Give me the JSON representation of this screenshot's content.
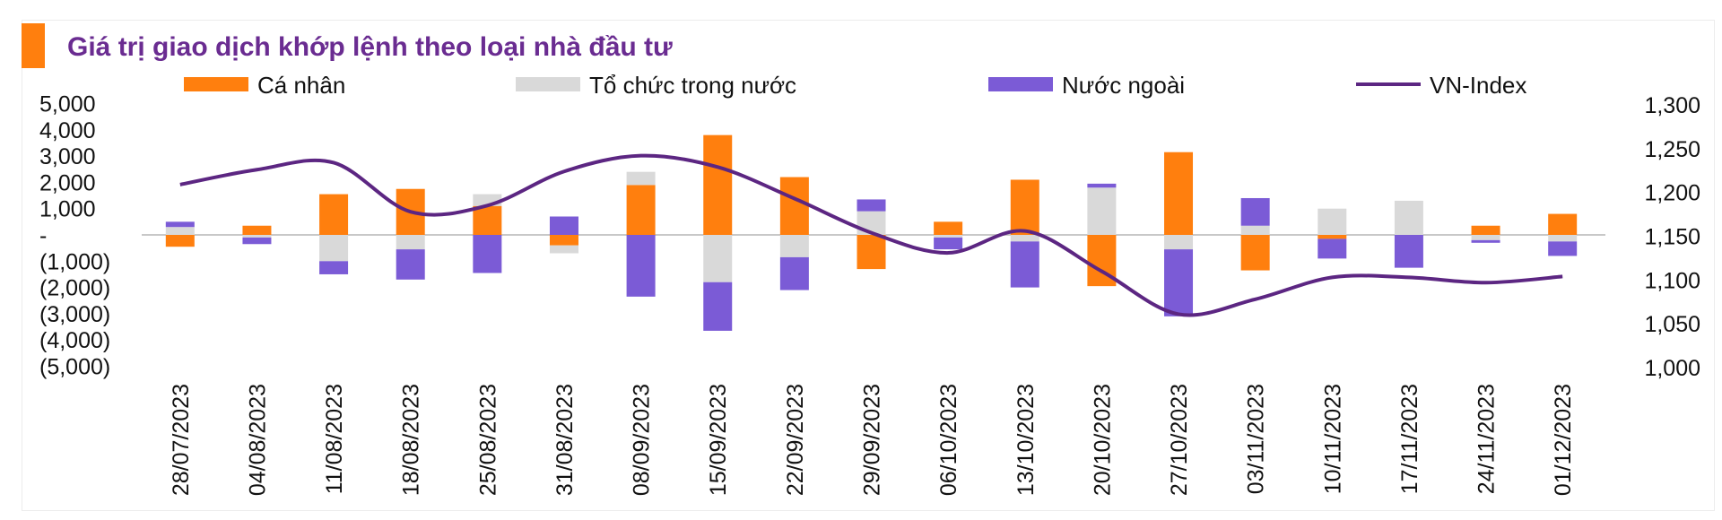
{
  "header": {
    "title": "Giá trị giao dịch khớp lệnh theo loại nhà đầu tư"
  },
  "colors": {
    "title": "#6a2c91",
    "accent": "#ff7f0e",
    "ca_nhan": "#ff7f0e",
    "to_chuc": "#d9d9d9",
    "nuoc_ngoai": "#7b5bd6",
    "vn_index": "#5c2682",
    "zero_line": "#c8c8c8",
    "axis_text": "#111111"
  },
  "chart_data": {
    "type": "bar",
    "stacked": true,
    "legend_position": "top",
    "grid": false,
    "categories": [
      "28/07/2023",
      "04/08/2023",
      "11/08/2023",
      "18/08/2023",
      "25/08/2023",
      "31/08/2023",
      "08/09/2023",
      "15/09/2023",
      "22/09/2023",
      "29/09/2023",
      "06/10/2023",
      "13/10/2023",
      "20/10/2023",
      "27/10/2023",
      "03/11/2023",
      "10/11/2023",
      "17/11/2023",
      "24/11/2023",
      "01/12/2023"
    ],
    "y_left": {
      "ylim": [
        -5000,
        5000
      ],
      "ticks": [
        5000,
        4000,
        3000,
        2000,
        1000,
        0,
        -1000,
        -2000,
        -3000,
        -4000,
        -5000
      ],
      "tick_labels": [
        "5,000",
        "4,000",
        "3,000",
        "2,000",
        "1,000",
        "-",
        "(1,000)",
        "(2,000)",
        "(3,000)",
        "(4,000)",
        "(5,000)"
      ]
    },
    "y_right": {
      "ylim": [
        1000,
        1300
      ],
      "ticks": [
        1300,
        1250,
        1200,
        1150,
        1100,
        1050,
        1000
      ],
      "tick_labels": [
        "1,300",
        "1,250",
        "1,200",
        "1,150",
        "1,100",
        "1,050",
        "1,000"
      ]
    },
    "series": [
      {
        "name": "Cá nhân",
        "kind": "bar",
        "axis": "left",
        "values": [
          -450,
          350,
          1550,
          1750,
          1100,
          -400,
          1900,
          3800,
          2200,
          -1300,
          500,
          2100,
          -1950,
          3150,
          -1350,
          -150,
          0,
          350,
          800
        ]
      },
      {
        "name": "Tổ chức trong nước",
        "kind": "bar",
        "axis": "left",
        "values": [
          300,
          -100,
          -1000,
          -550,
          450,
          -300,
          500,
          -1800,
          -850,
          900,
          -100,
          -250,
          1800,
          -550,
          350,
          1000,
          1300,
          -200,
          -250
        ]
      },
      {
        "name": "Nước ngoài",
        "kind": "bar",
        "axis": "left",
        "values": [
          200,
          -250,
          -500,
          -1150,
          -1450,
          700,
          -2350,
          -1850,
          -1250,
          450,
          -450,
          -1750,
          150,
          -2550,
          1050,
          -750,
          -1250,
          -100,
          -550
        ]
      },
      {
        "name": "VN-Index",
        "kind": "line",
        "axis": "right",
        "values": [
          1209,
          1226,
          1234,
          1178,
          1185,
          1224,
          1242,
          1229,
          1193,
          1154,
          1131,
          1156,
          1110,
          1061,
          1078,
          1103,
          1103,
          1097,
          1104
        ]
      }
    ]
  }
}
